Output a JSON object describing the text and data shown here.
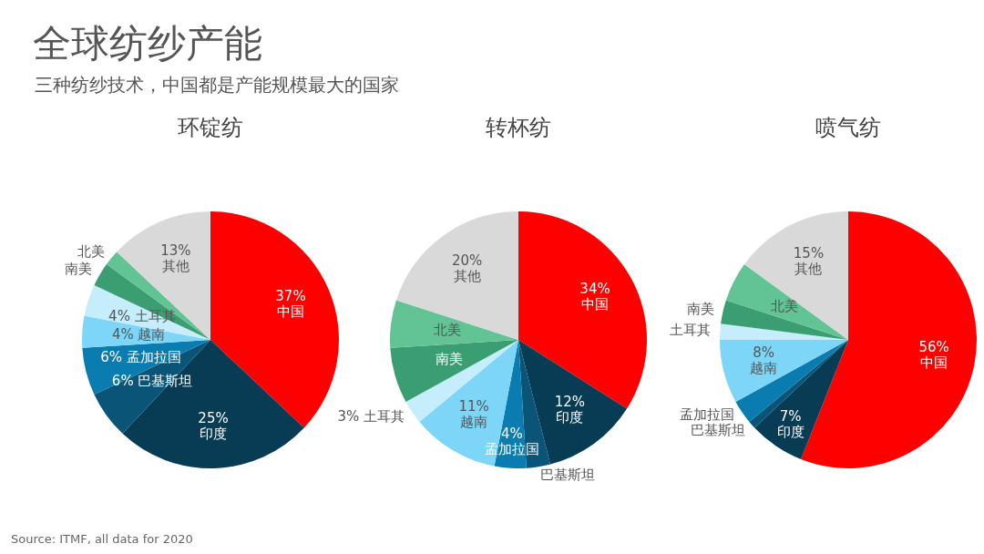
{
  "chart_data": [
    {
      "type": "other",
      "title": "全球纺纱产能",
      "subtitle": "三种纺纱技术，中国都是产能规模最大的国家",
      "annotations": [
        "Source: ITMF, all data for 2020"
      ]
    },
    {
      "type": "pie",
      "title": "环锭纺",
      "categories": [
        "中国",
        "印度",
        "巴基斯坦",
        "孟加拉国",
        "越南",
        "土耳其",
        "南美",
        "北美",
        "其他"
      ],
      "values": [
        37,
        25,
        6,
        6,
        4,
        4,
        3,
        2,
        13
      ],
      "value_labels": [
        "37%",
        "25%",
        "6%",
        "6%",
        "4%",
        "4%",
        null,
        null,
        "13%"
      ],
      "colors": [
        "#fe0000",
        "#083c55",
        "#0a5478",
        "#0a7cb0",
        "#7dd6f8",
        "#c5edfb",
        "#3a9e72",
        "#62c395",
        "#d9d9d9"
      ]
    },
    {
      "type": "pie",
      "title": "转杯纺",
      "categories": [
        "中国",
        "印度",
        "巴基斯坦",
        "孟加拉国",
        "越南",
        "土耳其",
        "南美",
        "北美",
        "其他"
      ],
      "values": [
        34,
        12,
        3,
        4,
        11,
        3,
        7,
        6,
        20
      ],
      "value_labels": [
        "34%",
        "12%",
        null,
        "4%",
        "11%",
        "3%",
        null,
        null,
        "20%"
      ],
      "colors": [
        "#fe0000",
        "#083c55",
        "#0a5478",
        "#0a7cb0",
        "#7dd6f8",
        "#c5edfb",
        "#3a9e72",
        "#62c395",
        "#d9d9d9"
      ]
    },
    {
      "type": "pie",
      "title": "喷气纺",
      "categories": [
        "中国",
        "印度",
        "巴基斯坦",
        "孟加拉国",
        "越南",
        "土耳其",
        "南美",
        "北美",
        "其他"
      ],
      "values": [
        56,
        7,
        1,
        3,
        8,
        2,
        3,
        5,
        15
      ],
      "value_labels": [
        "56%",
        "7%",
        null,
        null,
        "8%",
        null,
        null,
        null,
        "15%"
      ],
      "colors": [
        "#fe0000",
        "#083c55",
        "#0a5478",
        "#0a7cb0",
        "#7dd6f8",
        "#c5edfb",
        "#3a9e72",
        "#62c395",
        "#d9d9d9"
      ]
    }
  ]
}
